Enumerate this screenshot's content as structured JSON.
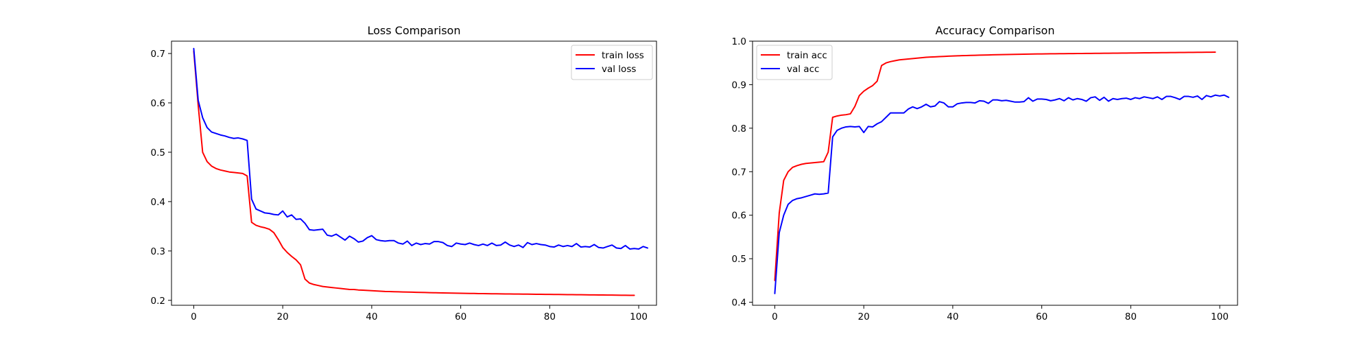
{
  "chart_data": [
    {
      "type": "line",
      "title": "Loss Comparison",
      "xlabel": "",
      "ylabel": "",
      "xlim": [
        -5,
        104
      ],
      "ylim": [
        0.19,
        0.725
      ],
      "xticks": [
        "0",
        "20",
        "40",
        "60",
        "80",
        "100"
      ],
      "yticks": [
        "0.2",
        "0.3",
        "0.4",
        "0.5",
        "0.6",
        "0.7"
      ],
      "grid": false,
      "legend_position": "upper right",
      "series": [
        {
          "name": "train loss",
          "color": "#ff0000",
          "values": [
            0.705,
            0.595,
            0.5,
            0.481,
            0.472,
            0.467,
            0.464,
            0.462,
            0.46,
            0.459,
            0.458,
            0.457,
            0.452,
            0.358,
            0.352,
            0.349,
            0.347,
            0.344,
            0.337,
            0.323,
            0.307,
            0.297,
            0.289,
            0.282,
            0.272,
            0.243,
            0.235,
            0.232,
            0.23,
            0.228,
            0.227,
            0.226,
            0.225,
            0.224,
            0.223,
            0.222,
            0.222,
            0.221,
            0.2205,
            0.22,
            0.2195,
            0.219,
            0.2185,
            0.218,
            0.2178,
            0.2175,
            0.2172,
            0.217,
            0.2167,
            0.2165,
            0.2162,
            0.216,
            0.2158,
            0.2156,
            0.2154,
            0.2152,
            0.215,
            0.2148,
            0.2146,
            0.2145,
            0.2143,
            0.2142,
            0.214,
            0.2139,
            0.2137,
            0.2136,
            0.2135,
            0.2133,
            0.2132,
            0.2131,
            0.213,
            0.2129,
            0.2128,
            0.2127,
            0.2126,
            0.2125,
            0.2124,
            0.2123,
            0.2122,
            0.2121,
            0.212,
            0.2119,
            0.2118,
            0.2117,
            0.2116,
            0.2115,
            0.2114,
            0.2113,
            0.2112,
            0.2111,
            0.211,
            0.2109,
            0.2108,
            0.2107,
            0.2106,
            0.2105,
            0.2104,
            0.2103,
            0.2102,
            0.2101
          ]
        },
        {
          "name": "val loss",
          "color": "#0000ff",
          "values": [
            0.71,
            0.605,
            0.57,
            0.55,
            0.541,
            0.538,
            0.535,
            0.533,
            0.53,
            0.528,
            0.529,
            0.527,
            0.524,
            0.405,
            0.385,
            0.381,
            0.377,
            0.376,
            0.374,
            0.373,
            0.381,
            0.369,
            0.373,
            0.364,
            0.365,
            0.356,
            0.343,
            0.342,
            0.343,
            0.344,
            0.332,
            0.33,
            0.334,
            0.328,
            0.322,
            0.33,
            0.325,
            0.318,
            0.32,
            0.327,
            0.331,
            0.323,
            0.321,
            0.32,
            0.321,
            0.321,
            0.316,
            0.314,
            0.32,
            0.311,
            0.316,
            0.313,
            0.315,
            0.314,
            0.319,
            0.319,
            0.317,
            0.311,
            0.309,
            0.316,
            0.314,
            0.313,
            0.316,
            0.313,
            0.311,
            0.314,
            0.311,
            0.316,
            0.311,
            0.312,
            0.318,
            0.312,
            0.309,
            0.312,
            0.307,
            0.317,
            0.313,
            0.315,
            0.313,
            0.312,
            0.309,
            0.308,
            0.312,
            0.309,
            0.311,
            0.309,
            0.315,
            0.308,
            0.309,
            0.308,
            0.313,
            0.307,
            0.306,
            0.309,
            0.312,
            0.306,
            0.305,
            0.311,
            0.304,
            0.305,
            0.304,
            0.309,
            0.306
          ]
        }
      ]
    },
    {
      "type": "line",
      "title": "Accuracy Comparison",
      "xlabel": "",
      "ylabel": "",
      "xlim": [
        -5,
        104
      ],
      "ylim": [
        0.393,
        1.0
      ],
      "xticks": [
        "0",
        "20",
        "40",
        "60",
        "80",
        "100"
      ],
      "yticks": [
        "0.4",
        "0.5",
        "0.6",
        "0.7",
        "0.8",
        "0.9",
        "1.0"
      ],
      "grid": false,
      "legend_position": "upper left",
      "series": [
        {
          "name": "train acc",
          "color": "#ff0000",
          "values": [
            0.45,
            0.605,
            0.68,
            0.7,
            0.71,
            0.714,
            0.717,
            0.719,
            0.72,
            0.721,
            0.722,
            0.723,
            0.745,
            0.825,
            0.828,
            0.83,
            0.831,
            0.833,
            0.85,
            0.875,
            0.885,
            0.892,
            0.898,
            0.908,
            0.944,
            0.95,
            0.953,
            0.955,
            0.957,
            0.958,
            0.959,
            0.96,
            0.961,
            0.962,
            0.963,
            0.9635,
            0.964,
            0.9645,
            0.965,
            0.9655,
            0.966,
            0.9663,
            0.9666,
            0.9669,
            0.9672,
            0.9675,
            0.9678,
            0.968,
            0.9683,
            0.9686,
            0.9688,
            0.969,
            0.9692,
            0.9694,
            0.9696,
            0.9698,
            0.97,
            0.9702,
            0.9704,
            0.9706,
            0.9707,
            0.9708,
            0.971,
            0.9711,
            0.9712,
            0.9713,
            0.9714,
            0.9715,
            0.9716,
            0.9717,
            0.9718,
            0.9719,
            0.972,
            0.9721,
            0.9722,
            0.9723,
            0.9724,
            0.9725,
            0.9726,
            0.9727,
            0.9728,
            0.9729,
            0.973,
            0.9731,
            0.9732,
            0.9733,
            0.9734,
            0.9735,
            0.9736,
            0.9737,
            0.9738,
            0.9739,
            0.974,
            0.9741,
            0.9742,
            0.9743,
            0.9744,
            0.9745,
            0.9746,
            0.9747
          ]
        },
        {
          "name": "val acc",
          "color": "#0000ff",
          "values": [
            0.42,
            0.56,
            0.6,
            0.625,
            0.634,
            0.638,
            0.64,
            0.643,
            0.646,
            0.649,
            0.648,
            0.649,
            0.651,
            0.78,
            0.795,
            0.8,
            0.803,
            0.804,
            0.803,
            0.804,
            0.79,
            0.804,
            0.803,
            0.81,
            0.815,
            0.825,
            0.835,
            0.835,
            0.835,
            0.835,
            0.844,
            0.849,
            0.845,
            0.849,
            0.855,
            0.849,
            0.851,
            0.861,
            0.858,
            0.849,
            0.849,
            0.856,
            0.858,
            0.859,
            0.859,
            0.858,
            0.863,
            0.862,
            0.857,
            0.865,
            0.865,
            0.863,
            0.864,
            0.862,
            0.86,
            0.86,
            0.861,
            0.87,
            0.862,
            0.867,
            0.867,
            0.866,
            0.863,
            0.865,
            0.868,
            0.863,
            0.87,
            0.865,
            0.868,
            0.866,
            0.862,
            0.87,
            0.872,
            0.864,
            0.871,
            0.862,
            0.868,
            0.866,
            0.868,
            0.869,
            0.866,
            0.87,
            0.868,
            0.872,
            0.87,
            0.868,
            0.872,
            0.866,
            0.873,
            0.873,
            0.87,
            0.866,
            0.873,
            0.873,
            0.871,
            0.874,
            0.866,
            0.875,
            0.872,
            0.876,
            0.874,
            0.876,
            0.871
          ]
        }
      ]
    }
  ]
}
